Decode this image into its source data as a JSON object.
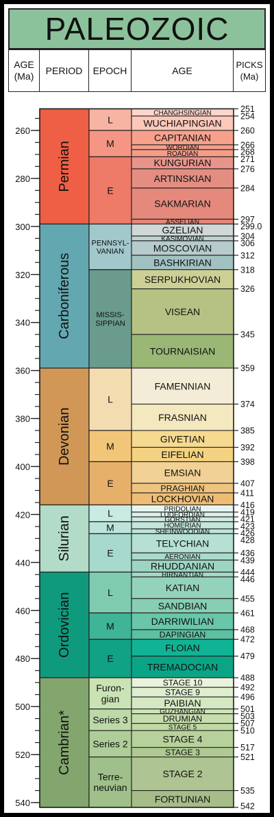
{
  "title": "PALEOZOIC",
  "headers": {
    "age_ma": "AGE\n(Ma)",
    "period": "PERIOD",
    "epoch": "EPOCH",
    "age": "AGE",
    "picks": "PICKS\n(Ma)"
  },
  "chart_data": {
    "type": "table",
    "title": "PALEOZOIC",
    "axis": {
      "label": "AGE (Ma)",
      "range": [
        250,
        540
      ],
      "ticks": [
        260,
        280,
        300,
        320,
        340,
        360,
        380,
        400,
        420,
        440,
        460,
        480,
        500,
        520,
        540
      ],
      "minor_step": 5
    },
    "periods": [
      {
        "name": "Permian",
        "start": 251,
        "end": 299.0,
        "color": "#ef5f45"
      },
      {
        "name": "Carboniferous",
        "start": 299.0,
        "end": 359,
        "color": "#63a8b1"
      },
      {
        "name": "Devonian",
        "start": 359,
        "end": 416,
        "color": "#d09756"
      },
      {
        "name": "Silurian",
        "start": 416,
        "end": 444,
        "color": "#b2dcc7"
      },
      {
        "name": "Ordovician",
        "start": 444,
        "end": 488,
        "color": "#0f9a7e"
      },
      {
        "name": "Cambrian*",
        "start": 488,
        "end": 542,
        "color": "#83a66e"
      }
    ],
    "epochs": [
      {
        "name": "L",
        "start": 251,
        "end": 260,
        "color": "#f7b4a3"
      },
      {
        "name": "M",
        "start": 260,
        "end": 271,
        "color": "#f59584"
      },
      {
        "name": "E",
        "start": 271,
        "end": 299.0,
        "color": "#ee7a68"
      },
      {
        "name": "PENNSYL-\nVANIAN",
        "start": 299.0,
        "end": 318,
        "color": "#a2c8cc"
      },
      {
        "name": "MISSIS-\nSIPPIAN",
        "start": 318,
        "end": 359,
        "color": "#6a9b8c"
      },
      {
        "name": "L",
        "start": 359,
        "end": 385,
        "color": "#f4dcb1"
      },
      {
        "name": "M",
        "start": 385,
        "end": 398,
        "color": "#f2c679"
      },
      {
        "name": "E",
        "start": 398,
        "end": 416,
        "color": "#e7b06a"
      },
      {
        "name": "L",
        "start": 416,
        "end": 423,
        "color": "#c9ebe3"
      },
      {
        "name": "M",
        "start": 423,
        "end": 428,
        "color": "#bce4da"
      },
      {
        "name": "E",
        "start": 428,
        "end": 444,
        "color": "#a7d9cd"
      },
      {
        "name": "L",
        "start": 444,
        "end": 461,
        "color": "#7fcbb0"
      },
      {
        "name": "M",
        "start": 461,
        "end": 472,
        "color": "#3fb496"
      },
      {
        "name": "E",
        "start": 472,
        "end": 488,
        "color": "#11a185"
      },
      {
        "name": "Furon-\ngian",
        "start": 488,
        "end": 501,
        "color": "#c9e3b4"
      },
      {
        "name": "Series 3",
        "start": 501,
        "end": 510,
        "color": "#bcd9a7"
      },
      {
        "name": "Series 2",
        "start": 510,
        "end": 521,
        "color": "#aecd98"
      },
      {
        "name": "Terre-\nneuvian",
        "start": 521,
        "end": 542,
        "color": "#9fc08a"
      }
    ],
    "stages": [
      {
        "name": "CHANGHSINGIAN",
        "start": 251,
        "end": 254,
        "color": "#fcd6cc"
      },
      {
        "name": "WUCHIAPINGIAN",
        "start": 254,
        "end": 260,
        "color": "#fbc8ba"
      },
      {
        "name": "CAPITANIAN",
        "start": 260,
        "end": 266,
        "color": "#f7a18d"
      },
      {
        "name": "WORDIAN",
        "start": 266,
        "end": 268,
        "color": "#f6a08c"
      },
      {
        "name": "ROADIAN",
        "start": 268,
        "end": 271,
        "color": "#f59c88"
      },
      {
        "name": "KUNGURIAN",
        "start": 271,
        "end": 276,
        "color": "#e8948a"
      },
      {
        "name": "ARTINSKIAN",
        "start": 276,
        "end": 284,
        "color": "#e48e82"
      },
      {
        "name": "SAKMARIAN",
        "start": 284,
        "end": 297,
        "color": "#e4897c"
      },
      {
        "name": "ASSELIAN",
        "start": 297,
        "end": 299.0,
        "color": "#e48678"
      },
      {
        "name": "GZELIAN",
        "start": 299.0,
        "end": 304,
        "color": "#d0d8d7"
      },
      {
        "name": "KASIMOVIAN",
        "start": 304,
        "end": 306,
        "color": "#bfd1d1"
      },
      {
        "name": "MOSCOVIAN",
        "start": 306,
        "end": 312,
        "color": "#b6cccc"
      },
      {
        "name": "BASHKIRIAN",
        "start": 312,
        "end": 318,
        "color": "#a2c2c2"
      },
      {
        "name": "SERPUKHOVIAN",
        "start": 318,
        "end": 326,
        "color": "#cdd095"
      },
      {
        "name": "VISEAN",
        "start": 326,
        "end": 345,
        "color": "#b5c283"
      },
      {
        "name": "TOURNAISIAN",
        "start": 345,
        "end": 359,
        "color": "#9bb776"
      },
      {
        "name": "FAMENNIAN",
        "start": 359,
        "end": 374,
        "color": "#f3ecd6"
      },
      {
        "name": "FRASNIAN",
        "start": 374,
        "end": 385,
        "color": "#f4e8bf"
      },
      {
        "name": "GIVETIAN",
        "start": 385,
        "end": 392,
        "color": "#f5da8f"
      },
      {
        "name": "EIFELIAN",
        "start": 392,
        "end": 398,
        "color": "#f3d281"
      },
      {
        "name": "EMSIAN",
        "start": 398,
        "end": 407,
        "color": "#f1d195"
      },
      {
        "name": "PRAGHIAN",
        "start": 407,
        "end": 411,
        "color": "#efc47f"
      },
      {
        "name": "LOCKHOVIAN",
        "start": 411,
        "end": 416,
        "color": "#eebd74"
      },
      {
        "name": "PRIDOLIAN",
        "start": 416,
        "end": 419,
        "color": "#e6f5f0"
      },
      {
        "name": "LUDFORDIAN",
        "start": 419,
        "end": 421,
        "color": "#d9efe8"
      },
      {
        "name": "GORSTIAN",
        "start": 421,
        "end": 423,
        "color": "#cfebe3"
      },
      {
        "name": "HOMERIAN",
        "start": 423,
        "end": 426,
        "color": "#c4e6dc"
      },
      {
        "name": "SHEINWOODIAN",
        "start": 426,
        "end": 428,
        "color": "#bce2d8"
      },
      {
        "name": "TELYCHIAN",
        "start": 428,
        "end": 436,
        "color": "#b5e0d3"
      },
      {
        "name": "AERONIAN",
        "start": 436,
        "end": 439,
        "color": "#a9dacb"
      },
      {
        "name": "RHUDDANIAN",
        "start": 439,
        "end": 444,
        "color": "#9ed4c4"
      },
      {
        "name": "HIRNANTIAN",
        "start": 444,
        "end": 446,
        "color": "#a3dac6"
      },
      {
        "name": "KATIAN",
        "start": 446,
        "end": 455,
        "color": "#93d3bb"
      },
      {
        "name": "SANDBIAN",
        "start": 455,
        "end": 461,
        "color": "#87ceb3"
      },
      {
        "name": "DARRIWILIAN",
        "start": 461,
        "end": 468,
        "color": "#6ac6ab"
      },
      {
        "name": "DAPINGIAN",
        "start": 468,
        "end": 472,
        "color": "#5cc0a3"
      },
      {
        "name": "FLOIAN",
        "start": 472,
        "end": 479,
        "color": "#12b394"
      },
      {
        "name": "TREMADOCIAN",
        "start": 479,
        "end": 488,
        "color": "#0aa586"
      },
      {
        "name": "STAGE 10",
        "start": 488,
        "end": 492,
        "color": "#e9f3db"
      },
      {
        "name": "STAGE 9",
        "start": 492,
        "end": 496,
        "color": "#dfeecf"
      },
      {
        "name": "PAIBIAN",
        "start": 496,
        "end": 501,
        "color": "#d4e8c2"
      },
      {
        "name": "GUZHANGIAN",
        "start": 501,
        "end": 503,
        "color": "#cde3b8"
      },
      {
        "name": "DRUMIAN",
        "start": 503,
        "end": 507,
        "color": "#c6deae"
      },
      {
        "name": "STAGE 5",
        "start": 507,
        "end": 510,
        "color": "#bfd9a4"
      },
      {
        "name": "STAGE 4",
        "start": 510,
        "end": 517,
        "color": "#b7d19b"
      },
      {
        "name": "STAGE 3",
        "start": 517,
        "end": 521,
        "color": "#aec991"
      },
      {
        "name": "STAGE 2",
        "start": 521,
        "end": 535,
        "color": "#aec492"
      },
      {
        "name": "FORTUNIAN",
        "start": 535,
        "end": 542,
        "color": "#a6bd89"
      }
    ],
    "picks": [
      "251",
      "254",
      "260",
      "266",
      "268",
      "271",
      "276",
      "284",
      "297",
      "299.0",
      "304",
      "306",
      "312",
      "318",
      "326",
      "345",
      "359",
      "374",
      "385",
      "392",
      "398",
      "407",
      "411",
      "416",
      "419",
      "421",
      "423",
      "426",
      "428",
      "436",
      "439",
      "444",
      "446",
      "455",
      "461",
      "468",
      "472",
      "479",
      "488",
      "492",
      "496",
      "501",
      "503",
      "507",
      "510",
      "517",
      "521",
      "535",
      "542"
    ]
  }
}
